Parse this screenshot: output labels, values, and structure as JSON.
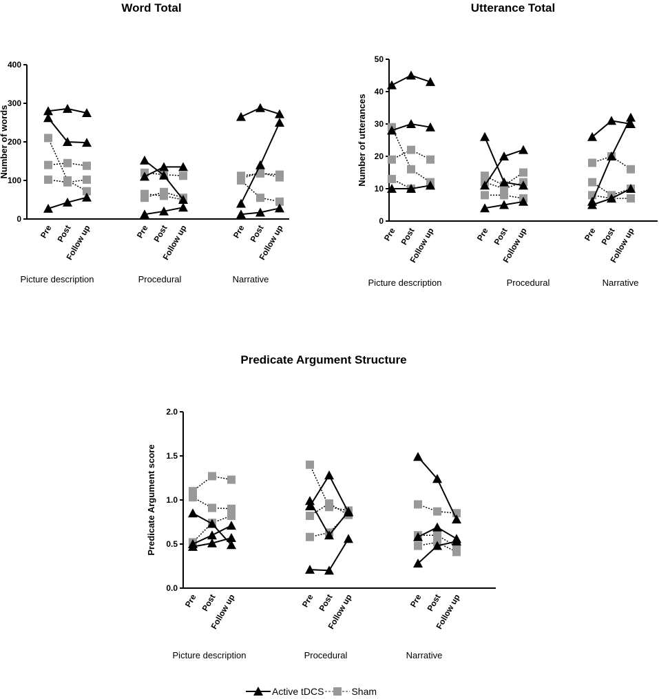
{
  "colors": {
    "active": "#000000",
    "sham": "#999999"
  },
  "legend": {
    "active_label": "Active tDCS",
    "sham_label": "Sham"
  },
  "chart_data": [
    {
      "type": "line",
      "title": "Word Total",
      "ylabel": "Number of words",
      "ylim": [
        0,
        400
      ],
      "yticks": [
        "0",
        "100",
        "200",
        "300",
        "400"
      ],
      "tick_values": [
        0,
        100,
        200,
        300,
        400
      ],
      "timepoints": [
        "Pre",
        "Post",
        "Follow up"
      ],
      "groups": [
        "Picture description",
        "Procedural",
        "Narrative"
      ],
      "series": [
        {
          "group": 0,
          "condition": "active",
          "values": [
            280,
            286,
            275
          ]
        },
        {
          "group": 0,
          "condition": "active",
          "values": [
            262,
            200,
            198
          ]
        },
        {
          "group": 0,
          "condition": "active",
          "values": [
            27,
            43,
            56
          ]
        },
        {
          "group": 0,
          "condition": "sham",
          "values": [
            210,
            100,
            72
          ]
        },
        {
          "group": 0,
          "condition": "sham",
          "values": [
            140,
            145,
            138
          ]
        },
        {
          "group": 0,
          "condition": "sham",
          "values": [
            102,
            95,
            102
          ]
        },
        {
          "group": 1,
          "condition": "active",
          "values": [
            152,
            113,
            50
          ]
        },
        {
          "group": 1,
          "condition": "active",
          "values": [
            110,
            135,
            135
          ]
        },
        {
          "group": 1,
          "condition": "active",
          "values": [
            12,
            20,
            30
          ]
        },
        {
          "group": 1,
          "condition": "sham",
          "values": [
            120,
            115,
            112
          ]
        },
        {
          "group": 1,
          "condition": "sham",
          "values": [
            65,
            60,
            50
          ]
        },
        {
          "group": 1,
          "condition": "sham",
          "values": [
            55,
            70,
            55
          ]
        },
        {
          "group": 2,
          "condition": "active",
          "values": [
            265,
            288,
            272
          ]
        },
        {
          "group": 2,
          "condition": "active",
          "values": [
            40,
            140,
            250
          ]
        },
        {
          "group": 2,
          "condition": "active",
          "values": [
            12,
            17,
            28
          ]
        },
        {
          "group": 2,
          "condition": "sham",
          "values": [
            112,
            118,
            115
          ]
        },
        {
          "group": 2,
          "condition": "sham",
          "values": [
            105,
            120,
            108
          ]
        },
        {
          "group": 2,
          "condition": "sham",
          "values": [
            100,
            55,
            45
          ]
        }
      ]
    },
    {
      "type": "line",
      "title": "Utterance Total",
      "ylabel": "Number of utterances",
      "ylim": [
        0,
        50
      ],
      "yticks": [
        "0",
        "10",
        "20",
        "30",
        "40",
        "50"
      ],
      "tick_values": [
        0,
        10,
        20,
        30,
        40,
        50
      ],
      "timepoints": [
        "Pre",
        "Post",
        "Follow up"
      ],
      "groups": [
        "Picture description",
        "Procedural",
        "Narrative"
      ],
      "series": [
        {
          "group": 0,
          "condition": "active",
          "values": [
            42,
            45,
            43
          ]
        },
        {
          "group": 0,
          "condition": "active",
          "values": [
            28,
            30,
            29
          ]
        },
        {
          "group": 0,
          "condition": "active",
          "values": [
            10,
            10,
            11
          ]
        },
        {
          "group": 0,
          "condition": "sham",
          "values": [
            29,
            16,
            12
          ]
        },
        {
          "group": 0,
          "condition": "sham",
          "values": [
            19,
            22,
            19
          ]
        },
        {
          "group": 0,
          "condition": "sham",
          "values": [
            13,
            10,
            11
          ]
        },
        {
          "group": 1,
          "condition": "active",
          "values": [
            26,
            12,
            11
          ]
        },
        {
          "group": 1,
          "condition": "active",
          "values": [
            11,
            20,
            22
          ]
        },
        {
          "group": 1,
          "condition": "active",
          "values": [
            4,
            5,
            6
          ]
        },
        {
          "group": 1,
          "condition": "sham",
          "values": [
            14,
            11,
            15
          ]
        },
        {
          "group": 1,
          "condition": "sham",
          "values": [
            12,
            10,
            12
          ]
        },
        {
          "group": 1,
          "condition": "sham",
          "values": [
            8,
            8,
            7
          ]
        },
        {
          "group": 2,
          "condition": "active",
          "values": [
            26,
            31,
            30
          ]
        },
        {
          "group": 2,
          "condition": "active",
          "values": [
            6,
            20,
            32
          ]
        },
        {
          "group": 2,
          "condition": "active",
          "values": [
            5,
            7,
            10
          ]
        },
        {
          "group": 2,
          "condition": "sham",
          "values": [
            18,
            20,
            16
          ]
        },
        {
          "group": 2,
          "condition": "sham",
          "values": [
            12,
            8,
            10
          ]
        },
        {
          "group": 2,
          "condition": "sham",
          "values": [
            8,
            7,
            7
          ]
        }
      ]
    },
    {
      "type": "line",
      "title": "Predicate Argument Structure",
      "ylabel": "Predicate Argument score",
      "ylim": [
        0,
        2
      ],
      "yticks": [
        "0.0",
        "0.5",
        "1.0",
        "1.5",
        "2.0"
      ],
      "tick_values": [
        0,
        0.5,
        1,
        1.5,
        2
      ],
      "timepoints": [
        "Pre",
        "Post",
        "Follow up"
      ],
      "groups": [
        "Picture description",
        "Procedural",
        "Narrative"
      ],
      "series": [
        {
          "group": 0,
          "condition": "active",
          "values": [
            0.85,
            0.73,
            0.49
          ]
        },
        {
          "group": 0,
          "condition": "active",
          "values": [
            0.5,
            0.6,
            0.71
          ]
        },
        {
          "group": 0,
          "condition": "active",
          "values": [
            0.47,
            0.51,
            0.57
          ]
        },
        {
          "group": 0,
          "condition": "sham",
          "values": [
            1.1,
            1.27,
            1.23
          ]
        },
        {
          "group": 0,
          "condition": "sham",
          "values": [
            1.03,
            0.91,
            0.9
          ]
        },
        {
          "group": 0,
          "condition": "sham",
          "values": [
            0.52,
            0.74,
            0.82
          ]
        },
        {
          "group": 1,
          "condition": "active",
          "values": [
            0.99,
            0.6,
            0.87
          ]
        },
        {
          "group": 1,
          "condition": "active",
          "values": [
            0.93,
            1.28,
            0.86
          ]
        },
        {
          "group": 1,
          "condition": "active",
          "values": [
            0.21,
            0.2,
            0.56
          ]
        },
        {
          "group": 1,
          "condition": "sham",
          "values": [
            1.4,
            0.92,
            0.88
          ]
        },
        {
          "group": 1,
          "condition": "sham",
          "values": [
            0.82,
            0.96,
            0.83
          ]
        },
        {
          "group": 1,
          "condition": "sham",
          "values": [
            0.58,
            0.63,
            0.85
          ]
        },
        {
          "group": 2,
          "condition": "active",
          "values": [
            1.49,
            1.24,
            0.78
          ]
        },
        {
          "group": 2,
          "condition": "active",
          "values": [
            0.58,
            0.69,
            0.56
          ]
        },
        {
          "group": 2,
          "condition": "active",
          "values": [
            0.28,
            0.48,
            0.53
          ]
        },
        {
          "group": 2,
          "condition": "sham",
          "values": [
            0.95,
            0.87,
            0.85
          ]
        },
        {
          "group": 2,
          "condition": "sham",
          "values": [
            0.6,
            0.6,
            0.47
          ]
        },
        {
          "group": 2,
          "condition": "sham",
          "values": [
            0.48,
            0.52,
            0.41
          ]
        }
      ]
    }
  ]
}
